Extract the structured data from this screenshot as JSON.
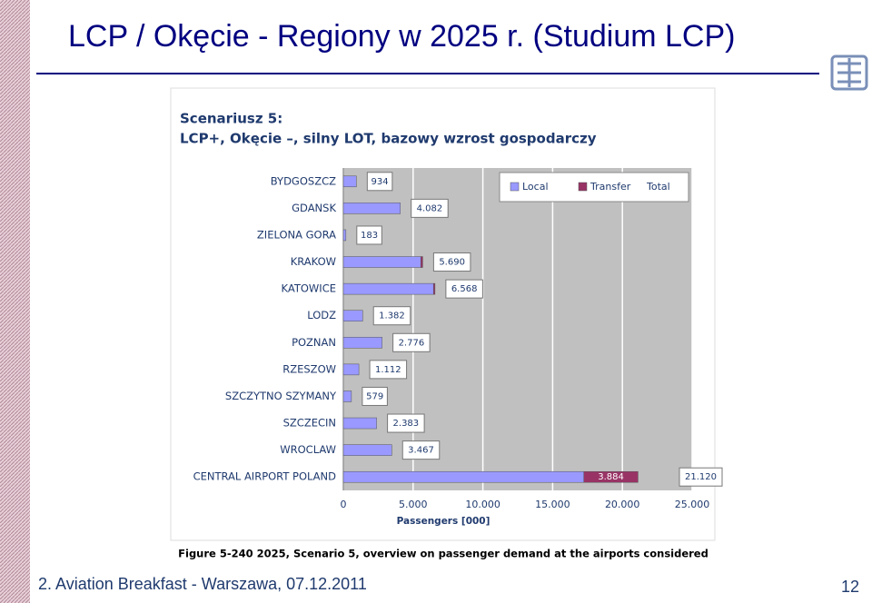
{
  "slide": {
    "title": "LCP / Okęcie - Regiony w 2025 r.  (Studium LCP)",
    "footer": "2. Aviation Breakfast - Warszawa, 07.12.2011",
    "page_number": "12"
  },
  "chart_data": {
    "type": "stacked_bar_horizontal",
    "title": "Scenariusz 5:",
    "subtitle": "LCP+, Okęcie –, silny LOT, bazowy wzrost gospodarczy",
    "caption": "Figure 5-240 2025, Scenario 5, overview on passenger demand at the airports considered",
    "xlabel": "Passengers [000]",
    "categories": [
      "BYDGOSZCZ",
      "GDANSK",
      "ZIELONA GORA",
      "KRAKOW",
      "KATOWICE",
      "LODZ",
      "POZNAN",
      "RZESZOW",
      "SZCZYTNO SZYMANY",
      "SZCZECIN",
      "WROCLAW",
      "CENTRAL AIRPORT POLAND"
    ],
    "series": [
      {
        "name": "Local",
        "color": "#9999ff",
        "values": [
          934,
          4082,
          183,
          5550,
          6460,
          1382,
          2776,
          1112,
          579,
          2383,
          3467,
          17236
        ]
      },
      {
        "name": "Transfer",
        "color": "#993366",
        "values": [
          0,
          0,
          0,
          140,
          108,
          0,
          0,
          0,
          0,
          0,
          0,
          3884
        ],
        "value_labels": [
          null,
          null,
          null,
          null,
          null,
          null,
          null,
          null,
          null,
          null,
          null,
          "3.884"
        ]
      },
      {
        "name": "Total",
        "values": [
          934,
          4082,
          183,
          5690,
          6568,
          1382,
          2776,
          1112,
          579,
          2383,
          3467,
          21120
        ],
        "value_labels": [
          "934",
          "4.082",
          "183",
          "5.690",
          "6.568",
          "1.382",
          "2.776",
          "1.112",
          "579",
          "2.383",
          "3.467",
          "21.120"
        ]
      }
    ],
    "xlim": [
      0,
      25000
    ],
    "xticks": [
      0,
      {
        "value": 5000,
        "label": "5.000"
      },
      {
        "value": 10000,
        "label": "10.000"
      },
      {
        "value": 15000,
        "label": "15.000"
      },
      {
        "value": 20000,
        "label": "20.000"
      },
      {
        "value": 25000,
        "label": "25.000"
      }
    ],
    "grid": true,
    "legend": "upper right"
  }
}
